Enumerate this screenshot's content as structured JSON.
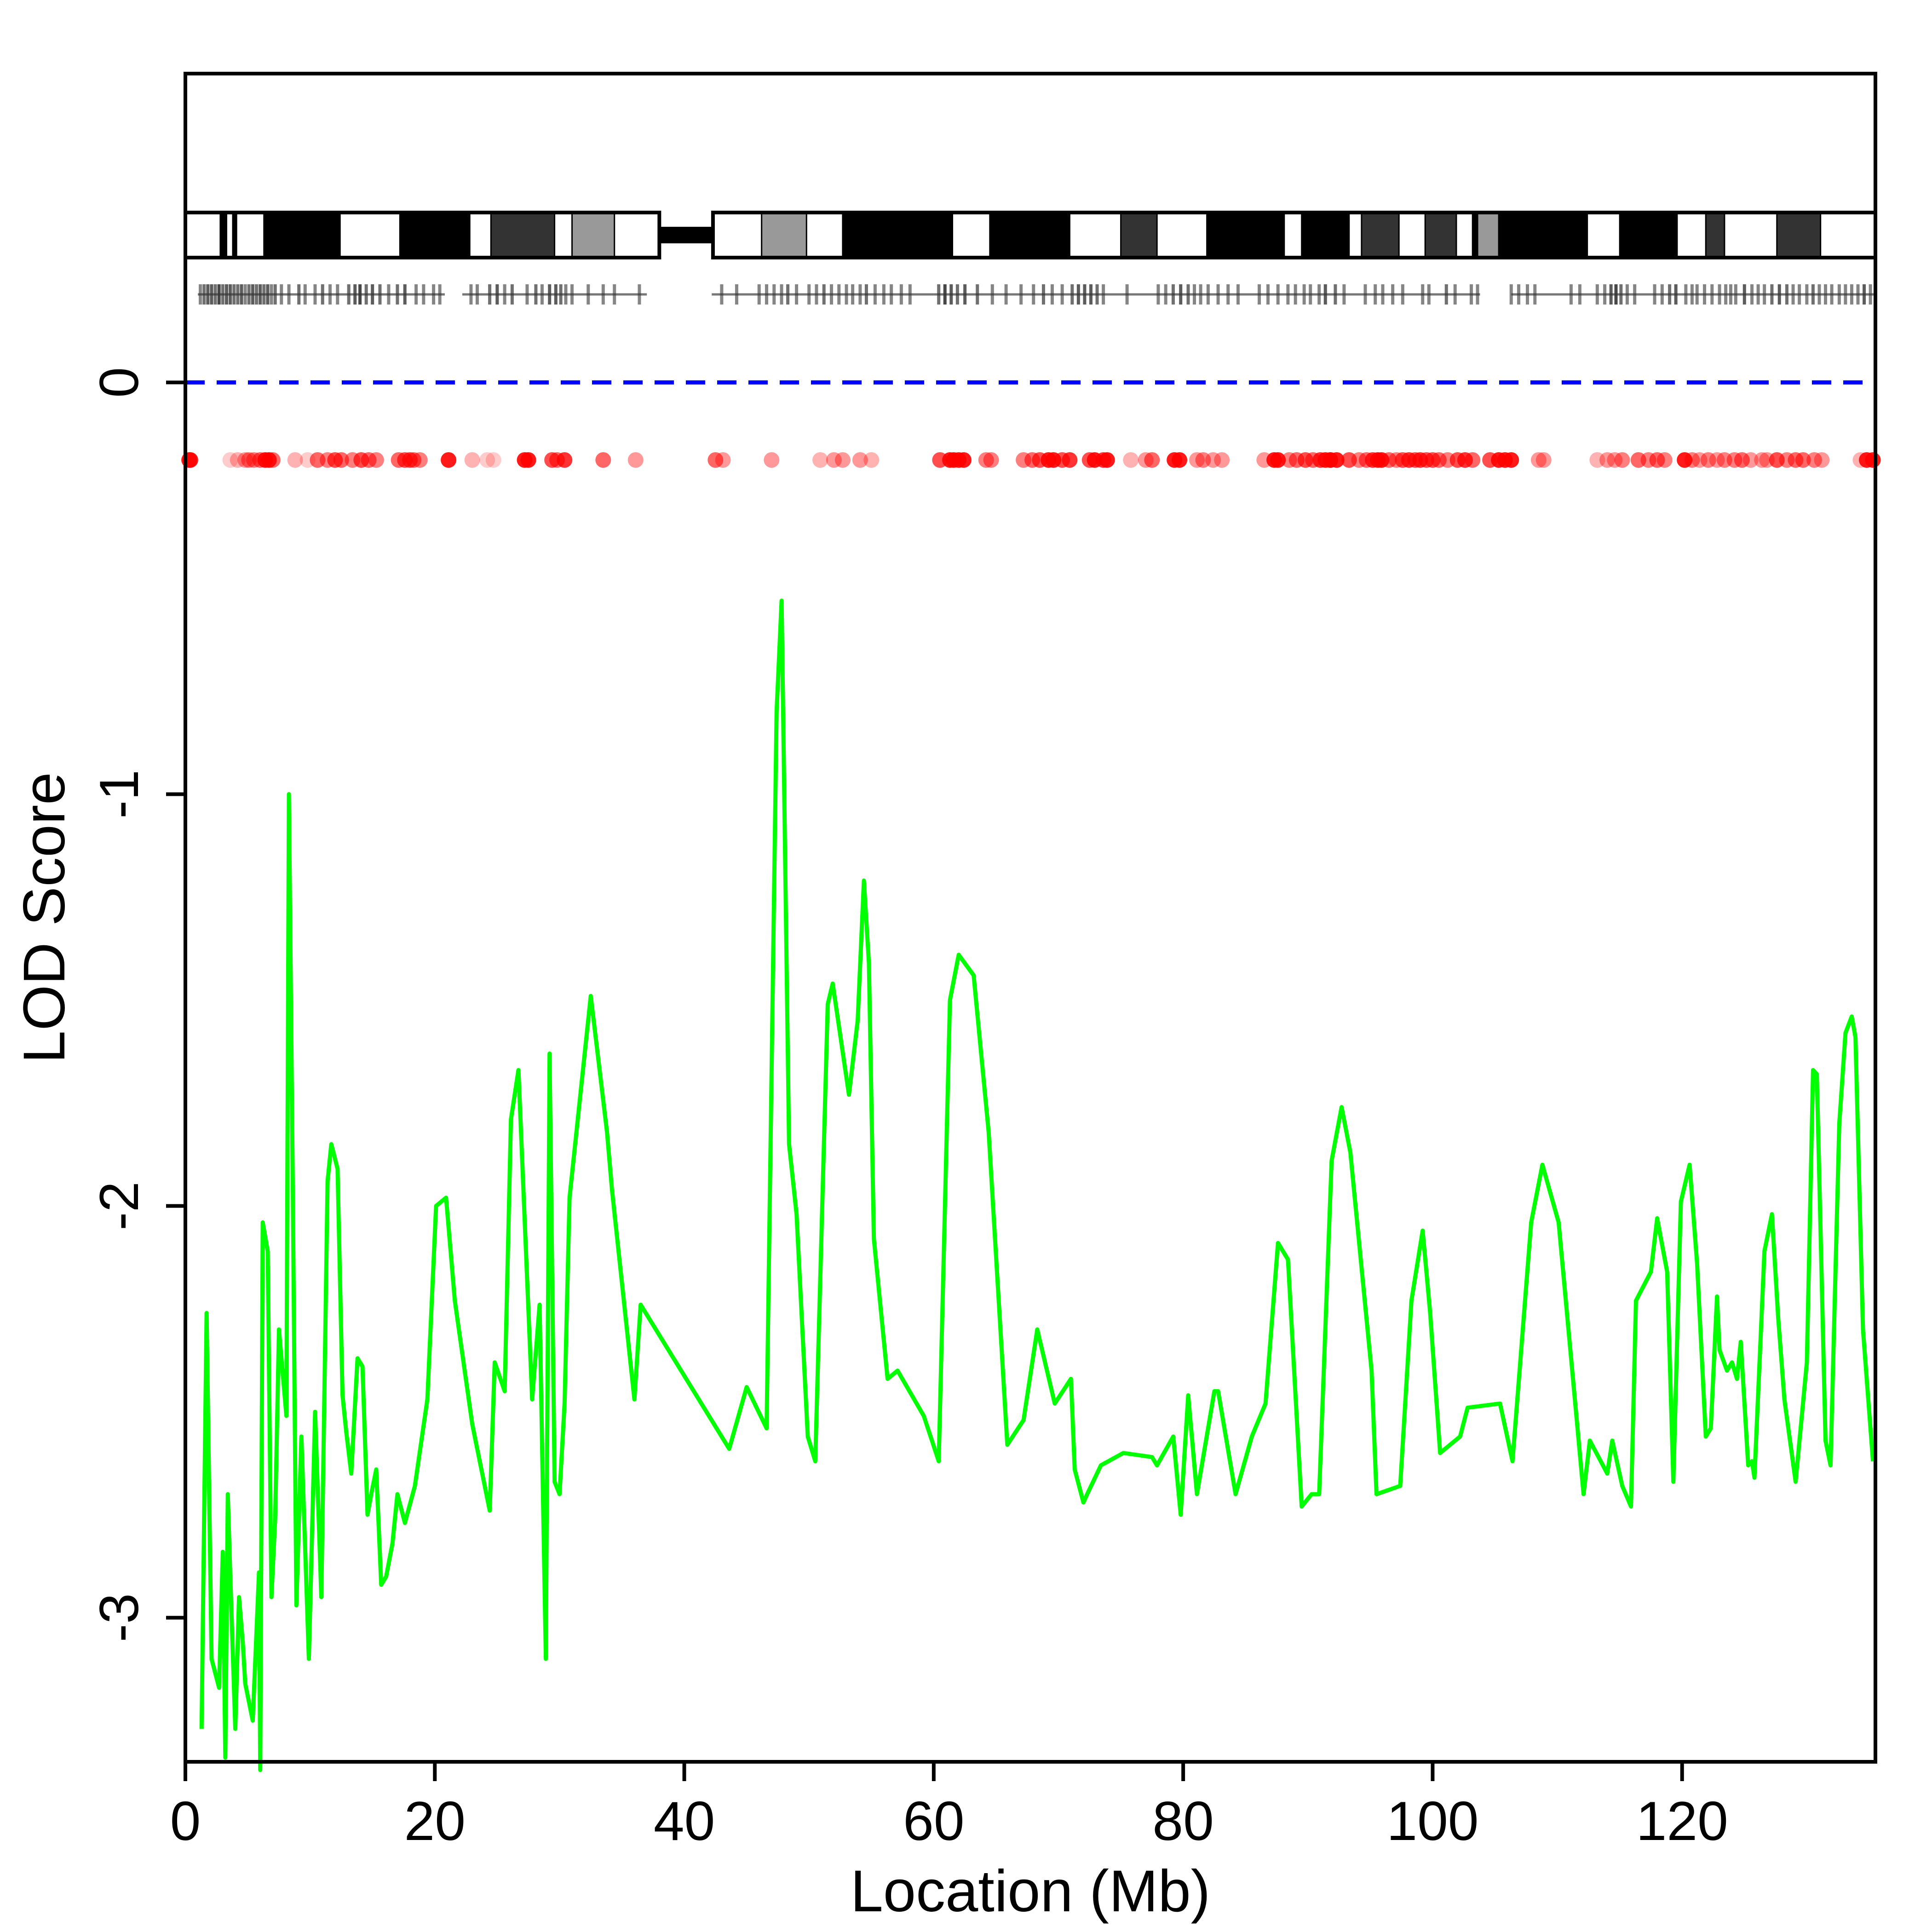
{
  "chart_data": {
    "type": "line",
    "title": "",
    "xlabel": "Location (Mb)",
    "ylabel": "LOD Score",
    "xlim": [
      0,
      135.5
    ],
    "ylim": [
      -3.35,
      0.75
    ],
    "x_ticks": [
      "0",
      "20",
      "40",
      "60",
      "80",
      "100",
      "120"
    ],
    "y_ticks": [
      "-3",
      "-2",
      "-1",
      "0"
    ],
    "reference_line": {
      "y": 0,
      "style": "dashed",
      "color": "#0000ff"
    },
    "colors": {
      "line": "#00ff00",
      "markers": "#ff0000",
      "reference": "#0000ff",
      "axes": "#000000"
    },
    "series": [
      {
        "x": [
          1.3,
          1.7,
          2.1,
          2.7,
          3.0,
          3.2,
          3.4,
          3.6,
          4.0,
          4.3,
          4.6,
          4.8,
          5.4,
          5.9,
          6.0,
          6.2,
          6.6,
          6.9,
          7.2,
          7.5,
          8.1,
          8.3,
          8.6,
          8.9,
          9.3,
          9.9,
          10.4,
          10.9,
          11.4,
          11.7,
          12.2,
          12.6,
          12.9,
          13.3,
          13.8,
          14.2,
          14.6,
          14.9,
          15.3,
          15.7,
          16.1,
          16.6,
          17.0,
          17.6,
          18.4,
          19.4,
          20.1,
          20.9,
          21.6,
          23.0,
          24.4,
          24.8,
          25.6,
          26.1,
          26.7,
          27.8,
          28.4,
          28.9,
          29.2,
          29.6,
          30.0,
          30.4,
          30.8,
          32.5,
          33.8,
          34.2,
          36.0,
          36.5,
          43.6,
          45.0,
          46.6,
          47.4,
          47.8,
          48.4,
          49.0,
          49.9,
          50.5,
          51.5,
          51.9,
          53.2,
          53.9,
          54.4,
          54.8,
          55.2,
          56.3,
          57.1,
          59.2,
          60.4,
          61.3,
          62.0,
          63.2,
          64.4,
          65.9,
          67.2,
          68.3,
          69.7,
          71.0,
          71.3,
          72.0,
          72.3,
          73.4,
          75.2,
          77.5,
          77.9,
          79.2,
          79.8,
          80.4,
          81.1,
          82.5,
          82.8,
          84.2,
          85.5,
          86.6,
          87.6,
          88.4,
          89.5,
          90.3,
          90.9,
          91.9,
          92.7,
          93.4,
          95.1,
          95.5,
          97.4,
          98.3,
          99.2,
          99.8,
          100.6,
          102.2,
          102.8,
          105.4,
          106.4,
          107.9,
          108.8,
          110.1,
          112.1,
          112.6,
          114.0,
          114.4,
          115.2,
          115.9,
          116.3,
          117.5,
          118.0,
          118.8,
          119.3,
          119.9,
          120.6,
          121.2,
          121.9,
          122.3,
          122.8,
          123.0,
          123.6,
          124.0,
          124.4,
          124.7,
          125.3,
          125.6,
          125.8,
          126.6,
          127.2,
          127.7,
          128.2,
          129.1,
          130.0,
          130.5,
          130.8,
          131.5,
          131.9,
          132.6,
          133.1,
          133.6,
          133.9,
          134.5,
          135.3
        ],
        "values": [
          -3.27,
          -2.26,
          -3.1,
          -3.17,
          -2.84,
          -3.34,
          -2.7,
          -2.9,
          -3.27,
          -2.95,
          -3.06,
          -3.16,
          -3.25,
          -2.89,
          -3.37,
          -2.04,
          -2.11,
          -2.95,
          -2.76,
          -2.3,
          -2.51,
          -1.0,
          -1.92,
          -2.97,
          -2.56,
          -3.1,
          -2.5,
          -2.95,
          -1.94,
          -1.85,
          -1.91,
          -2.46,
          -2.55,
          -2.65,
          -2.37,
          -2.39,
          -2.75,
          -2.7,
          -2.64,
          -2.92,
          -2.9,
          -2.82,
          -2.7,
          -2.77,
          -2.68,
          -2.47,
          -2.0,
          -1.98,
          -2.23,
          -2.53,
          -2.74,
          -2.38,
          -2.45,
          -1.79,
          -1.67,
          -2.47,
          -2.24,
          -3.1,
          -1.63,
          -2.67,
          -2.7,
          -2.48,
          -1.98,
          -1.49,
          -1.82,
          -1.96,
          -2.47,
          -2.24,
          -2.59,
          -2.44,
          -2.54,
          -0.8,
          -0.53,
          -1.85,
          -2.02,
          -2.56,
          -2.62,
          -1.51,
          -1.46,
          -1.73,
          -1.55,
          -1.21,
          -1.41,
          -2.08,
          -2.42,
          -2.4,
          -2.51,
          -2.62,
          -1.5,
          -1.39,
          -1.44,
          -1.82,
          -2.58,
          -2.52,
          -2.3,
          -2.48,
          -2.42,
          -2.64,
          -2.72,
          -2.7,
          -2.63,
          -2.6,
          -2.61,
          -2.63,
          -2.56,
          -2.75,
          -2.46,
          -2.7,
          -2.45,
          -2.45,
          -2.7,
          -2.56,
          -2.48,
          -2.09,
          -2.13,
          -2.73,
          -2.7,
          -2.7,
          -1.89,
          -1.76,
          -1.87,
          -2.4,
          -2.7,
          -2.68,
          -2.23,
          -2.06,
          -2.26,
          -2.6,
          -2.56,
          -2.49,
          -2.48,
          -2.62,
          -2.04,
          -1.9,
          -2.04,
          -2.7,
          -2.57,
          -2.65,
          -2.57,
          -2.68,
          -2.73,
          -2.23,
          -2.16,
          -2.03,
          -2.16,
          -2.67,
          -1.99,
          -1.9,
          -2.14,
          -2.56,
          -2.54,
          -2.22,
          -2.35,
          -2.4,
          -2.38,
          -2.42,
          -2.33,
          -2.63,
          -2.62,
          -2.66,
          -2.11,
          -2.02,
          -2.27,
          -2.47,
          -2.67,
          -2.38,
          -1.67,
          -1.68,
          -2.57,
          -2.63,
          -1.8,
          -1.58,
          -1.54,
          -1.59,
          -2.3,
          -2.62
        ]
      }
    ],
    "marker_x": [
      0.3,
      0.4,
      3.6,
      4.2,
      4.8,
      5.1,
      5.5,
      6.0,
      6.4,
      6.7,
      7.0,
      8.8,
      9.8,
      10.6,
      11.4,
      12.0,
      12.5,
      13.4,
      14.1,
      14.7,
      15.3,
      17.1,
      17.6,
      18.0,
      18.3,
      18.8,
      21.1,
      23.0,
      24.2,
      24.7,
      27.2,
      27.5,
      29.4,
      29.8,
      30.4,
      33.5,
      36.1,
      42.5,
      43.1,
      47.0,
      50.9,
      52.0,
      52.7,
      54.1,
      55.0,
      60.5,
      61.3,
      61.6,
      62.0,
      62.4,
      64.2,
      64.6,
      67.2,
      67.9,
      68.5,
      69.2,
      69.6,
      70.3,
      70.9,
      72.5,
      72.9,
      73.6,
      73.9,
      75.8,
      77.0,
      77.5,
      79.3,
      79.7,
      81.1,
      81.6,
      82.4,
      83.1,
      86.5,
      87.3,
      87.6,
      88.5,
      89.1,
      89.8,
      90.4,
      91.0,
      91.4,
      91.8,
      92.3,
      93.3,
      94.1,
      94.7,
      95.2,
      95.6,
      95.9,
      96.5,
      97.1,
      97.6,
      98.1,
      98.6,
      99.0,
      99.5,
      100.0,
      100.5,
      101.2,
      102.0,
      102.6,
      103.2,
      104.6,
      105.3,
      105.8,
      106.3,
      108.5,
      108.9,
      113.2,
      114.0,
      114.6,
      115.2,
      116.5,
      117.3,
      118.0,
      118.6,
      120.2,
      120.8,
      121.4,
      122.1,
      122.8,
      123.4,
      124.2,
      124.8,
      125.5,
      126.4,
      126.8,
      127.6,
      128.4,
      129.1,
      129.7,
      130.6,
      131.2,
      134.3,
      134.8,
      135.3
    ],
    "marker_opacity": [
      0.9,
      0.9,
      0.2,
      0.3,
      0.4,
      0.5,
      0.5,
      0.6,
      0.9,
      0.9,
      0.6,
      0.3,
      0.2,
      0.6,
      0.5,
      0.7,
      0.6,
      0.5,
      0.7,
      0.6,
      0.5,
      0.6,
      0.7,
      0.7,
      0.6,
      0.5,
      0.9,
      0.3,
      0.2,
      0.2,
      0.9,
      0.9,
      0.7,
      0.6,
      0.8,
      0.6,
      0.4,
      0.6,
      0.4,
      0.4,
      0.3,
      0.4,
      0.4,
      0.4,
      0.3,
      0.7,
      0.9,
      0.9,
      0.9,
      0.9,
      0.5,
      0.5,
      0.5,
      0.6,
      0.7,
      0.9,
      0.9,
      0.7,
      0.8,
      0.7,
      0.9,
      0.8,
      0.9,
      0.3,
      0.4,
      0.6,
      0.9,
      0.9,
      0.4,
      0.5,
      0.4,
      0.4,
      0.4,
      0.9,
      0.9,
      0.5,
      0.6,
      0.7,
      0.6,
      0.8,
      0.9,
      1.0,
      0.9,
      0.7,
      0.5,
      0.6,
      0.8,
      0.9,
      0.9,
      0.6,
      0.5,
      0.7,
      0.8,
      0.7,
      0.8,
      0.7,
      0.7,
      0.6,
      0.5,
      0.7,
      0.8,
      0.6,
      0.7,
      0.9,
      0.9,
      0.9,
      0.4,
      0.4,
      0.3,
      0.4,
      0.4,
      0.5,
      0.6,
      0.5,
      0.6,
      0.5,
      0.9,
      0.5,
      0.4,
      0.5,
      0.4,
      0.5,
      0.5,
      0.6,
      0.4,
      0.4,
      0.4,
      0.7,
      0.5,
      0.6,
      0.6,
      0.5,
      0.4,
      0.3,
      0.9,
      0.9,
      0.9
    ],
    "snp_x": [
      1.2,
      1.5,
      1.8,
      2.1,
      2.4,
      2.7,
      3.0,
      3.3,
      3.6,
      3.9,
      4.2,
      4.5,
      4.8,
      5.1,
      5.4,
      5.7,
      6.0,
      6.3,
      6.6,
      6.9,
      7.2,
      7.7,
      8.3,
      9.1,
      9.6,
      10.4,
      11.0,
      11.6,
      12.2,
      13.1,
      13.6,
      14.0,
      14.5,
      15.0,
      15.6,
      16.3,
      17.0,
      17.6,
      18.5,
      19.1,
      19.9,
      20.4,
      22.9,
      23.4,
      24.4,
      25.0,
      25.6,
      26.2,
      27.4,
      28.1,
      28.6,
      29.2,
      29.7,
      30.1,
      30.5,
      31.0,
      32.3,
      33.5,
      34.4,
      36.4,
      43.0,
      44.2,
      46.0,
      46.6,
      47.2,
      47.8,
      48.3,
      49.0,
      50.0,
      50.6,
      51.2,
      51.8,
      52.4,
      53.0,
      53.5,
      54.1,
      54.6,
      55.3,
      56.0,
      56.6,
      57.4,
      58.1,
      60.4,
      60.9,
      61.4,
      61.9,
      62.5,
      63.5,
      64.7,
      65.8,
      67.0,
      68.0,
      68.8,
      69.5,
      70.3,
      71.1,
      71.6,
      72.1,
      72.6,
      73.1,
      73.6,
      75.5,
      78.0,
      78.6,
      79.2,
      79.8,
      80.4,
      80.9,
      81.4,
      82.0,
      82.8,
      83.6,
      84.4,
      86.1,
      86.8,
      87.6,
      88.4,
      89.0,
      89.7,
      90.2,
      90.9,
      91.4,
      92.2,
      92.9,
      94.6,
      95.4,
      96.0,
      96.8,
      97.6,
      99.2,
      99.7,
      101.1,
      101.8,
      103.1,
      103.6,
      106.3,
      106.9,
      107.6,
      108.2,
      111.1,
      111.8,
      113.2,
      113.8,
      114.3,
      114.7,
      115.1,
      115.6,
      116.2,
      117.8,
      118.4,
      119.0,
      119.5,
      120.3,
      120.8,
      121.2,
      121.8,
      122.4,
      123.0,
      123.5,
      123.9,
      124.3,
      125.0,
      125.6,
      126.1,
      126.6,
      127.2,
      127.8,
      128.4,
      128.9,
      129.4,
      130.0,
      130.5,
      131.0,
      131.5,
      132.0,
      132.6,
      133.1,
      133.6,
      134.1,
      134.6,
      135.1
    ],
    "snp_opacity": [
      0.6,
      0.7,
      0.8,
      0.8,
      0.7,
      0.9,
      0.7,
      0.8,
      0.8,
      0.7,
      0.7,
      0.8,
      0.6,
      0.7,
      0.8,
      0.7,
      0.8,
      0.7,
      0.8,
      0.6,
      0.7,
      0.6,
      0.6,
      0.7,
      0.6,
      0.6,
      0.7,
      0.6,
      0.6,
      0.7,
      0.8,
      0.9,
      0.7,
      0.8,
      0.7,
      0.6,
      0.7,
      0.8,
      0.6,
      0.6,
      0.6,
      0.6,
      0.6,
      0.6,
      0.7,
      0.8,
      0.6,
      0.7,
      0.6,
      0.7,
      0.6,
      0.8,
      0.8,
      0.7,
      0.6,
      0.6,
      0.6,
      0.6,
      0.6,
      0.6,
      0.6,
      0.6,
      0.6,
      0.6,
      0.6,
      0.6,
      0.7,
      0.6,
      0.6,
      0.6,
      0.7,
      0.6,
      0.6,
      0.6,
      0.6,
      0.6,
      0.7,
      0.6,
      0.6,
      0.6,
      0.6,
      0.6,
      0.7,
      0.9,
      0.8,
      0.7,
      0.8,
      0.7,
      0.6,
      0.6,
      0.6,
      0.6,
      0.7,
      0.6,
      0.6,
      0.7,
      0.8,
      0.8,
      0.8,
      0.7,
      0.6,
      0.6,
      0.6,
      0.6,
      0.7,
      0.8,
      0.7,
      0.6,
      0.6,
      0.6,
      0.6,
      0.6,
      0.6,
      0.6,
      0.6,
      0.6,
      0.6,
      0.6,
      0.6,
      0.6,
      0.6,
      0.8,
      0.7,
      0.6,
      0.6,
      0.6,
      0.6,
      0.6,
      0.6,
      0.6,
      0.6,
      0.7,
      0.6,
      0.6,
      0.6,
      0.6,
      0.6,
      0.6,
      0.6,
      0.6,
      0.6,
      0.6,
      0.6,
      0.8,
      0.9,
      0.7,
      0.6,
      0.6,
      0.6,
      0.6,
      0.7,
      0.8,
      0.6,
      0.6,
      0.6,
      0.6,
      0.6,
      0.6,
      0.6,
      0.6,
      0.6,
      0.8,
      0.6,
      0.6,
      0.6,
      0.7,
      0.8,
      0.7,
      0.6,
      0.6,
      0.6,
      0.7,
      0.6,
      0.6,
      0.6,
      0.6,
      0.6,
      0.6,
      0.6,
      0.8,
      0.6
    ],
    "snp_segments": [
      [
        1.0,
        20.8
      ],
      [
        22.2,
        37.0
      ],
      [
        42.2,
        60.0
      ],
      [
        60.0,
        103.8
      ],
      [
        106.3,
        135.5
      ]
    ],
    "ideogram": {
      "arms": [
        [
          0,
          38.0
        ],
        [
          42.3,
          135.5
        ]
      ],
      "centromere": [
        38.0,
        42.3
      ],
      "bands": [
        {
          "start": 0,
          "end": 2.8,
          "color": "#ffffff"
        },
        {
          "start": 2.8,
          "end": 3.3,
          "color": "#000000"
        },
        {
          "start": 3.3,
          "end": 3.8,
          "color": "#ffffff"
        },
        {
          "start": 3.8,
          "end": 4.1,
          "color": "#000000"
        },
        {
          "start": 4.1,
          "end": 6.3,
          "color": "#ffffff"
        },
        {
          "start": 6.3,
          "end": 12.4,
          "color": "#000000"
        },
        {
          "start": 12.4,
          "end": 17.2,
          "color": "#ffffff"
        },
        {
          "start": 17.2,
          "end": 22.8,
          "color": "#000000"
        },
        {
          "start": 22.8,
          "end": 24.5,
          "color": "#ffffff"
        },
        {
          "start": 24.5,
          "end": 29.6,
          "color": "#333333"
        },
        {
          "start": 29.6,
          "end": 31.0,
          "color": "#ffffff"
        },
        {
          "start": 31.0,
          "end": 34.4,
          "color": "#999999"
        },
        {
          "start": 34.4,
          "end": 38.0,
          "color": "#ffffff"
        },
        {
          "start": 42.3,
          "end": 46.2,
          "color": "#ffffff"
        },
        {
          "start": 46.2,
          "end": 49.8,
          "color": "#999999"
        },
        {
          "start": 49.8,
          "end": 52.7,
          "color": "#ffffff"
        },
        {
          "start": 52.7,
          "end": 61.5,
          "color": "#000000"
        },
        {
          "start": 61.5,
          "end": 64.5,
          "color": "#ffffff"
        },
        {
          "start": 64.5,
          "end": 70.9,
          "color": "#000000"
        },
        {
          "start": 70.9,
          "end": 75.0,
          "color": "#ffffff"
        },
        {
          "start": 75.0,
          "end": 77.9,
          "color": "#333333"
        },
        {
          "start": 77.9,
          "end": 81.9,
          "color": "#ffffff"
        },
        {
          "start": 81.9,
          "end": 88.1,
          "color": "#000000"
        },
        {
          "start": 88.1,
          "end": 89.5,
          "color": "#ffffff"
        },
        {
          "start": 89.5,
          "end": 93.3,
          "color": "#000000"
        },
        {
          "start": 93.3,
          "end": 94.3,
          "color": "#ffffff"
        },
        {
          "start": 94.3,
          "end": 97.3,
          "color": "#333333"
        },
        {
          "start": 97.3,
          "end": 99.4,
          "color": "#ffffff"
        },
        {
          "start": 99.4,
          "end": 101.9,
          "color": "#333333"
        },
        {
          "start": 101.9,
          "end": 103.2,
          "color": "#ffffff"
        },
        {
          "start": 103.2,
          "end": 103.6,
          "color": "#000000"
        },
        {
          "start": 103.6,
          "end": 105.3,
          "color": "#999999"
        },
        {
          "start": 105.3,
          "end": 112.4,
          "color": "#000000"
        },
        {
          "start": 112.4,
          "end": 115.0,
          "color": "#ffffff"
        },
        {
          "start": 115.0,
          "end": 119.6,
          "color": "#000000"
        },
        {
          "start": 119.6,
          "end": 121.9,
          "color": "#ffffff"
        },
        {
          "start": 121.9,
          "end": 123.4,
          "color": "#333333"
        },
        {
          "start": 123.4,
          "end": 127.6,
          "color": "#ffffff"
        },
        {
          "start": 127.6,
          "end": 131.1,
          "color": "#333333"
        },
        {
          "start": 131.1,
          "end": 135.5,
          "color": "#ffffff"
        }
      ]
    }
  }
}
